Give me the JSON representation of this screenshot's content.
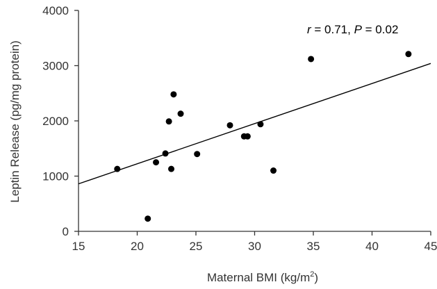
{
  "chart_data": {
    "type": "scatter",
    "xlabel": "Maternal BMI (kg/m",
    "xlabel_sup": "2",
    "xlabel_end": ")",
    "ylabel": "Leptin Release (pg/mg protein)",
    "xlim": [
      15,
      45
    ],
    "ylim": [
      0,
      4000
    ],
    "xticks": [
      15,
      20,
      25,
      30,
      35,
      40,
      45
    ],
    "yticks": [
      0,
      1000,
      2000,
      3000,
      4000
    ],
    "grid": false,
    "annotation": {
      "r_symbol": "r",
      "r_value": " = 0.71, ",
      "p_symbol": "P",
      "p_value": " = 0.02"
    },
    "points": [
      {
        "x": 18.3,
        "y": 1130
      },
      {
        "x": 20.9,
        "y": 230
      },
      {
        "x": 21.6,
        "y": 1250
      },
      {
        "x": 22.4,
        "y": 1410
      },
      {
        "x": 22.7,
        "y": 1990
      },
      {
        "x": 22.9,
        "y": 1130
      },
      {
        "x": 23.1,
        "y": 2480
      },
      {
        "x": 23.7,
        "y": 2130
      },
      {
        "x": 25.1,
        "y": 1400
      },
      {
        "x": 27.9,
        "y": 1920
      },
      {
        "x": 29.1,
        "y": 1720
      },
      {
        "x": 29.4,
        "y": 1720
      },
      {
        "x": 30.5,
        "y": 1940
      },
      {
        "x": 31.6,
        "y": 1100
      },
      {
        "x": 34.8,
        "y": 3120
      },
      {
        "x": 43.1,
        "y": 3210
      }
    ],
    "trendline": {
      "x": [
        15,
        45
      ],
      "y": [
        860,
        3040
      ]
    },
    "colors": {
      "points": "#000000",
      "trendline": "#000000",
      "axes": "#333333"
    }
  }
}
